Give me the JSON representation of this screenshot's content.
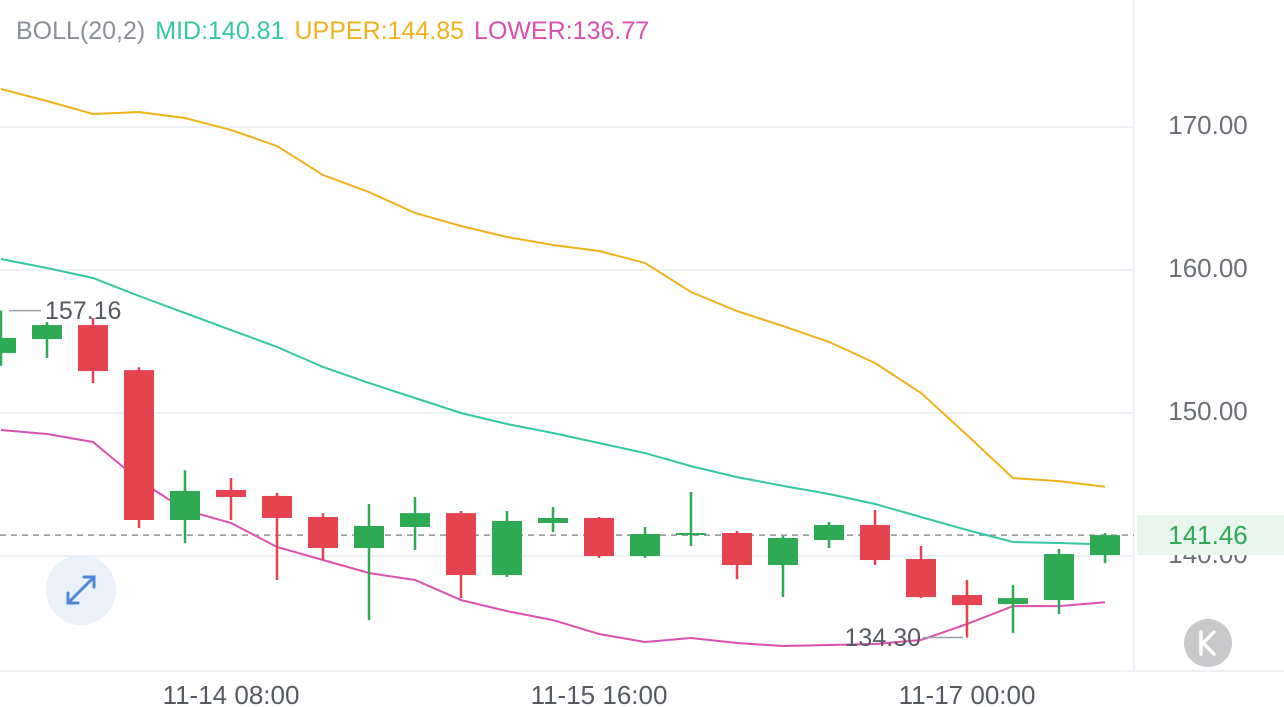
{
  "chart_data": {
    "type": "candlestick",
    "title": "BOLL(20,2)",
    "categories": [
      null,
      null,
      null,
      null,
      null,
      "11-14 08:00",
      null,
      null,
      null,
      null,
      null,
      null,
      null,
      "11-15 16:00",
      null,
      null,
      null,
      null,
      null,
      null,
      null,
      "11-17 00:00",
      null,
      null,
      null
    ],
    "open": [
      154.2,
      155.17,
      156.15,
      153.0,
      142.52,
      144.62,
      144.2,
      142.73,
      140.56,
      142.03,
      143.0,
      138.67,
      142.31,
      142.66,
      140.0,
      141.47,
      141.61,
      139.37,
      141.12,
      142.17,
      139.79,
      137.27,
      136.64,
      136.92,
      140.07
    ],
    "high": [
      157.16,
      156.36,
      156.64,
      153.2,
      146.0,
      145.45,
      144.41,
      143.0,
      143.64,
      144.13,
      143.15,
      143.15,
      143.43,
      142.73,
      142.03,
      144.48,
      141.75,
      141.4,
      142.38,
      143.22,
      140.7,
      138.32,
      137.97,
      140.49,
      141.61
    ],
    "low": [
      153.3,
      153.85,
      152.1,
      141.96,
      140.9,
      142.52,
      138.32,
      139.72,
      135.52,
      140.42,
      137.06,
      138.53,
      141.68,
      139.86,
      139.86,
      140.7,
      138.39,
      137.13,
      140.56,
      139.37,
      137.06,
      134.3,
      134.62,
      135.94,
      139.51
    ],
    "close": [
      155.25,
      156.15,
      152.94,
      142.52,
      144.55,
      144.13,
      142.66,
      140.56,
      142.1,
      143.0,
      138.67,
      142.45,
      142.66,
      140.0,
      141.54,
      141.61,
      139.37,
      141.26,
      142.17,
      139.72,
      137.13,
      136.57,
      137.06,
      140.14,
      141.46
    ],
    "up_color": "#2eaa55",
    "down_color": "#e5434f",
    "series": [
      {
        "name": "MID:140.81",
        "color": "#35c9a2",
        "values": [
          160.77,
          160.14,
          159.44,
          158.18,
          156.99,
          155.8,
          154.62,
          153.22,
          152.1,
          151.05,
          150.0,
          149.23,
          148.6,
          147.9,
          147.2,
          146.29,
          145.52,
          144.9,
          144.34,
          143.64,
          142.73,
          141.82,
          140.98,
          140.91,
          140.81
        ]
      },
      {
        "name": "UPPER:144.85",
        "color": "#f0b21c",
        "values": [
          172.66,
          171.82,
          170.91,
          171.05,
          170.63,
          169.79,
          168.67,
          166.64,
          165.45,
          163.99,
          163.08,
          162.31,
          161.75,
          161.33,
          160.49,
          158.46,
          157.13,
          156.08,
          154.97,
          153.5,
          151.4,
          148.46,
          145.45,
          145.24,
          144.85
        ]
      },
      {
        "name": "LOWER:136.77",
        "color": "#dd4fb0",
        "values": [
          148.81,
          148.53,
          147.97,
          145.31,
          143.22,
          142.31,
          140.63,
          139.72,
          138.81,
          138.32,
          136.92,
          136.15,
          135.52,
          134.55,
          133.99,
          134.27,
          133.92,
          133.71,
          133.78,
          133.85,
          134.13,
          135.24,
          136.5,
          136.5,
          136.77
        ]
      }
    ],
    "ylim": [
      132.03,
      178.88
    ],
    "yticks": [
      {
        "value": 140,
        "label": "140.00"
      },
      {
        "value": 150,
        "label": "150.00"
      },
      {
        "value": 160,
        "label": "160.00"
      },
      {
        "value": 170,
        "label": "170.00"
      }
    ],
    "grid": true,
    "last_price": 141.46,
    "high_marker": 157.16,
    "low_marker": {
      "value": 134.3,
      "label": "134.30"
    }
  }
}
